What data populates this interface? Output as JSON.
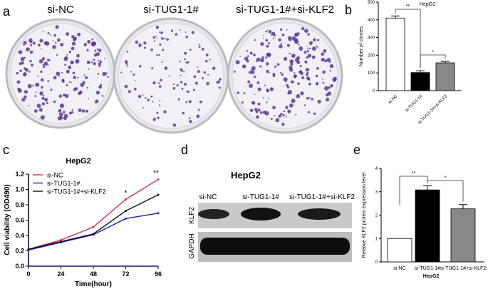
{
  "panel_labels": {
    "a": "a",
    "b": "b",
    "c": "c",
    "d": "d",
    "e": "e"
  },
  "panel_a": {
    "dishes": [
      "si-NC",
      "si-TUG1-1#",
      "si-TUG1-1#+si-KLF2"
    ],
    "colony_color": "#5a3a9a"
  },
  "panel_d": {
    "title": "HepG2",
    "lanes": [
      "si-NC",
      "si-TUG1-1#",
      "si-TUG1-1#+si-KLF2"
    ],
    "rows": [
      "KLF2",
      "GAPDH"
    ]
  },
  "chart_data": [
    {
      "id": "b",
      "type": "bar",
      "title": "HepG2",
      "ylabel": "Number of clonies",
      "xlabel": "",
      "ylim": [
        0,
        500
      ],
      "yticks": [
        0,
        100,
        200,
        300,
        400,
        500
      ],
      "categories": [
        "si-NC",
        "si-TUG1-1#",
        "si-TUG1-1#+si-KLF2"
      ],
      "values": [
        410,
        102,
        157
      ],
      "errors": [
        12,
        10,
        8
      ],
      "colors": [
        "#ffffff",
        "#000000",
        "#888888"
      ],
      "significance": [
        {
          "pair": [
            0,
            1
          ],
          "label": "**"
        },
        {
          "pair": [
            1,
            2
          ],
          "label": "*"
        }
      ]
    },
    {
      "id": "c",
      "type": "line",
      "title": "HepG2",
      "xlabel": "Time(hour)",
      "ylabel": "Cell viability (OD490)",
      "x": [
        0,
        24,
        48,
        72,
        96
      ],
      "xlim": [
        0,
        96
      ],
      "ylim": [
        0,
        1.2
      ],
      "yticks": [
        0.0,
        0.2,
        0.4,
        0.6,
        0.8,
        1.0,
        1.2
      ],
      "ytick_labels": [
        "0.0",
        "0.2",
        "0.4",
        "0.6",
        "0.8",
        "1.0",
        "1.2"
      ],
      "legend": "top-left",
      "series": [
        {
          "name": "si-NC",
          "color": "#d6335a",
          "values": [
            0.22,
            0.34,
            0.51,
            0.87,
            1.13
          ]
        },
        {
          "name": "si-TUG1-1#",
          "color": "#2222cc",
          "values": [
            0.21,
            0.31,
            0.41,
            0.62,
            0.69
          ]
        },
        {
          "name": "si-TUG1-1#+si-KLF2",
          "color": "#111111",
          "values": [
            0.22,
            0.32,
            0.42,
            0.72,
            0.93
          ]
        }
      ],
      "annotations": [
        {
          "x": 72,
          "label": "*"
        },
        {
          "x": 96,
          "label": "**"
        }
      ]
    },
    {
      "id": "e",
      "type": "bar",
      "title": "",
      "xlabel": "HepG2",
      "ylabel": "Relative KLF2 protein  expression level",
      "ylim": [
        0,
        4
      ],
      "yticks": [
        0,
        1,
        2,
        3,
        4
      ],
      "categories": [
        "si-NC",
        "si-TUG1-1#",
        "si-TUG1-1#+si-KLF2"
      ],
      "values": [
        1.0,
        3.08,
        2.27
      ],
      "errors": [
        0,
        0.18,
        0.18
      ],
      "colors": [
        "#ffffff",
        "#000000",
        "#888888"
      ],
      "significance": [
        {
          "pair": [
            0,
            1
          ],
          "label": "**"
        },
        {
          "pair": [
            1,
            2
          ],
          "label": "*"
        }
      ]
    }
  ]
}
